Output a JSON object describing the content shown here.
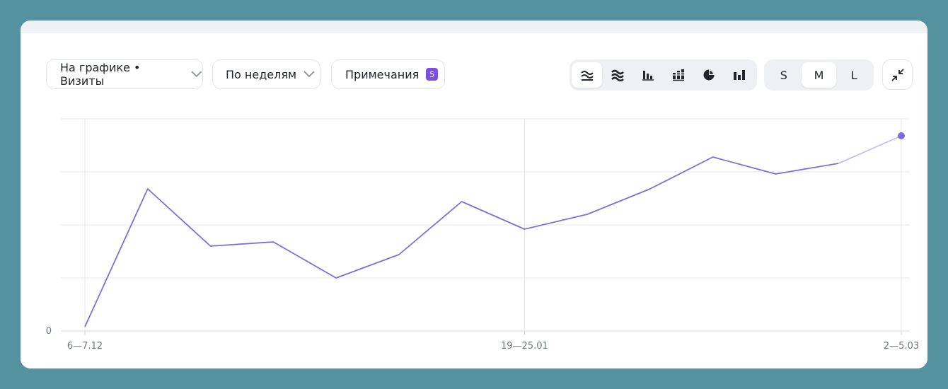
{
  "toolbar": {
    "metric_label": "На графике • Визиты",
    "period_label": "По неделям",
    "notes_label": "Примечания",
    "notes_count": "5",
    "chart_types": [
      "line-smooth-icon",
      "stacked-area-icon",
      "bar-icon",
      "stacked-bar-icon",
      "pie-icon",
      "column-icon"
    ],
    "sizes": [
      "S",
      "M",
      "L"
    ],
    "active_size": "M"
  },
  "colors": {
    "background": "#5592a0",
    "line": "#7a6fe0",
    "line_projected": "#c3c0f2",
    "badge": "#7b4fe0",
    "grid": "#e5e7ec"
  },
  "chart_data": {
    "type": "line",
    "title": "",
    "xlabel": "",
    "ylabel": "",
    "y_tick_labels": [
      "0"
    ],
    "x_tick_labels": [
      {
        "index": 0,
        "label": "6—7.12"
      },
      {
        "index": 7,
        "label": "19—25.01"
      },
      {
        "index": 13,
        "label": "2—5.03"
      }
    ],
    "series": [
      {
        "values": [
          0.02,
          0.67,
          0.4,
          0.42,
          0.25,
          0.36,
          0.61,
          0.48,
          0.55,
          0.67,
          0.82,
          0.74,
          0.79,
          0.92
        ],
        "projected_from_index": 12
      }
    ],
    "ylim": [
      0,
      1
    ],
    "grid": true,
    "legend": "none"
  }
}
